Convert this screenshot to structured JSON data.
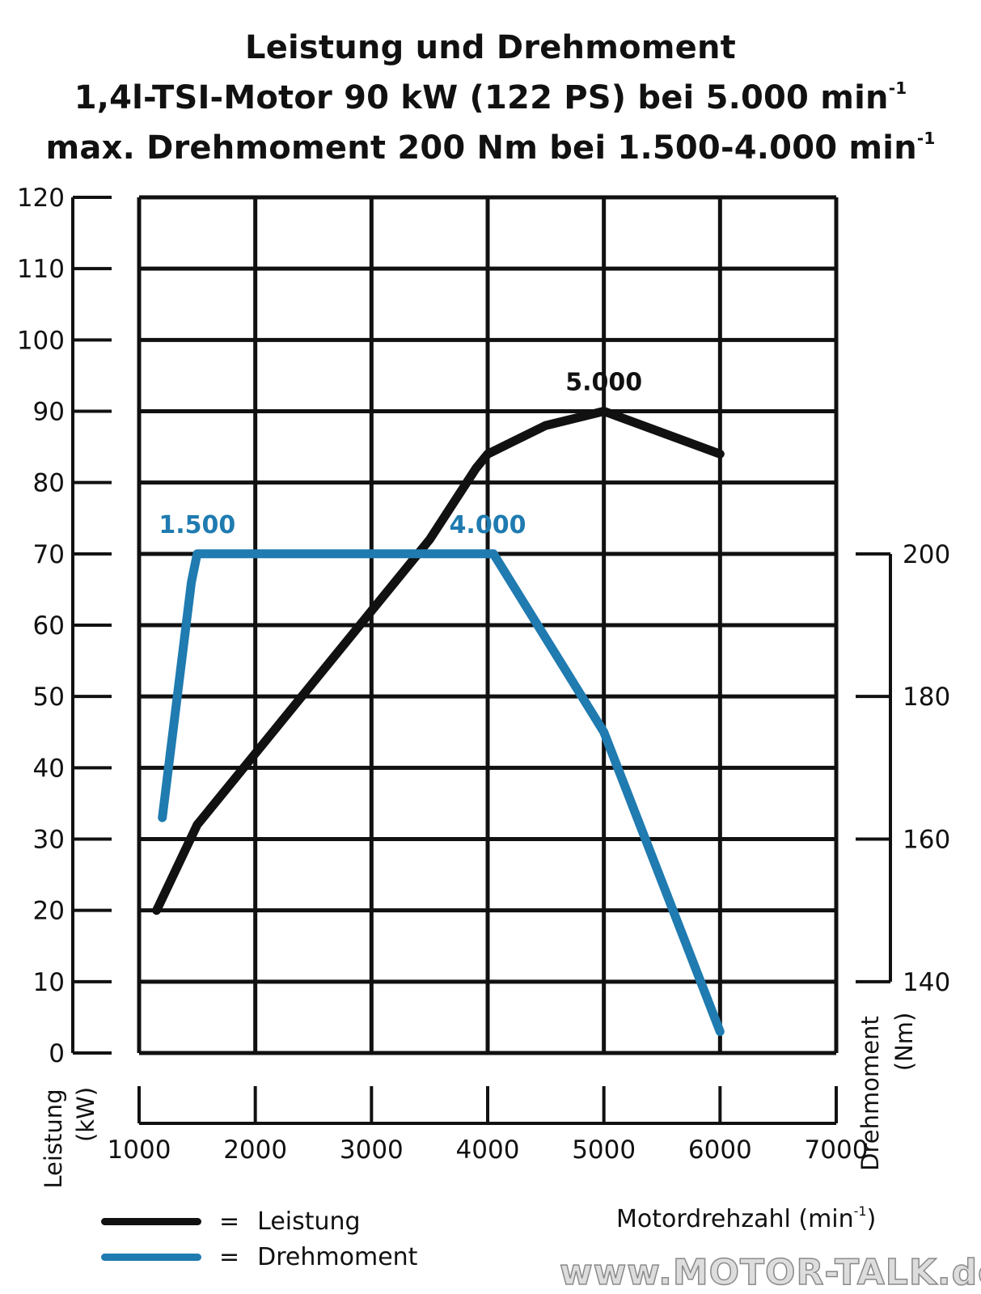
{
  "chart_data": {
    "type": "line",
    "title_lines": [
      "Leistung und Drehmoment",
      "1,4l-TSI-Motor 90 kW (122 PS) bei 5.000 min",
      "max. Drehmoment 200 Nm bei 1.500-4.000 min"
    ],
    "title_superscript": "-1",
    "xlabel": "Motordrehzahl (min",
    "xlabel_superscript": "-1",
    "xlabel_suffix": ")",
    "xlim": [
      1000,
      7000
    ],
    "x_ticks": [
      "1000",
      "2000",
      "3000",
      "4000",
      "5000",
      "6000",
      "7000"
    ],
    "y_left": {
      "label": "Leistung",
      "unit": "(kW)",
      "lim": [
        0,
        120
      ],
      "ticks": [
        "0",
        "10",
        "20",
        "30",
        "40",
        "50",
        "60",
        "70",
        "80",
        "90",
        "100",
        "110",
        "120"
      ]
    },
    "y_right": {
      "label": "Drehmoment",
      "unit": "(Nm)",
      "lim": [
        140,
        200
      ],
      "ticks": [
        "140",
        "160",
        "180",
        "200"
      ]
    },
    "grid": true,
    "legend_position": "bottom-left",
    "series": [
      {
        "name": "Leistung",
        "axis": "left",
        "color": "#111111",
        "x": [
          1150,
          1500,
          2000,
          2500,
          3000,
          3500,
          3900,
          4000,
          4500,
          5000,
          6000
        ],
        "y": [
          20,
          32,
          42,
          52,
          62,
          72,
          82,
          84,
          88,
          90,
          84
        ]
      },
      {
        "name": "Drehmoment",
        "axis": "right",
        "color": "#1f7bb0",
        "x": [
          1200,
          1450,
          1500,
          3000,
          4000,
          4050,
          5000,
          6000
        ],
        "y": [
          163,
          196,
          200,
          200,
          200,
          200,
          175,
          133
        ]
      }
    ],
    "annotations": [
      {
        "text": "5.000",
        "x": 5000,
        "y": 90,
        "axis": "left",
        "color": "#111111"
      },
      {
        "text": "1.500",
        "x": 1500,
        "y": 200,
        "axis": "right",
        "color": "#1f7bb0"
      },
      {
        "text": "4.000",
        "x": 4000,
        "y": 200,
        "axis": "right",
        "color": "#1f7bb0"
      }
    ]
  },
  "legend": {
    "equals": "=",
    "items": [
      {
        "label": "Leistung",
        "color": "#111111"
      },
      {
        "label": "Drehmoment",
        "color": "#1f7bb0"
      }
    ]
  },
  "watermark": "www.MOTOR-TALK.de"
}
